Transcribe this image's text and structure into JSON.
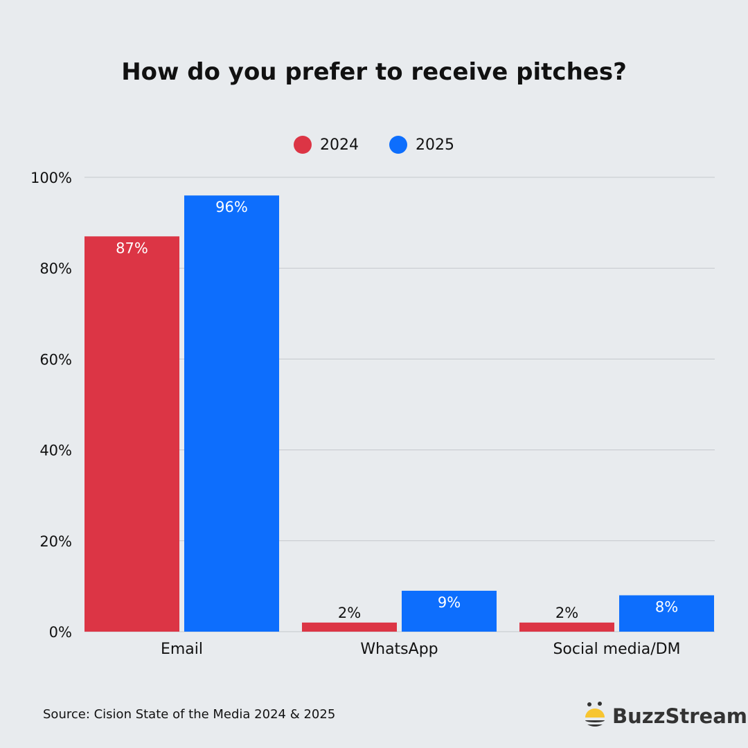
{
  "chart_data": {
    "type": "bar",
    "title": "How do you prefer to receive pitches?",
    "categories": [
      "Email",
      "WhatsApp",
      "Social media/DM"
    ],
    "series": [
      {
        "name": "2024",
        "values": [
          87,
          2,
          2
        ],
        "labels": [
          "87%",
          "2%",
          "2%"
        ],
        "color": "#dc3545"
      },
      {
        "name": "2025",
        "values": [
          96,
          9,
          8
        ],
        "labels": [
          "96%",
          "9%",
          "8%"
        ],
        "color": "#0d6efd"
      }
    ],
    "ylim": [
      0,
      100
    ],
    "yticks": [
      0,
      20,
      40,
      60,
      80,
      100
    ],
    "ytick_labels": [
      "0%",
      "20%",
      "40%",
      "60%",
      "80%",
      "100%"
    ],
    "grid": true,
    "legend_position": "top-center"
  },
  "source": "Source: Cision State of the Media 2024 & 2025",
  "logo": {
    "text": "BuzzStream",
    "accent": "#f7c531"
  }
}
